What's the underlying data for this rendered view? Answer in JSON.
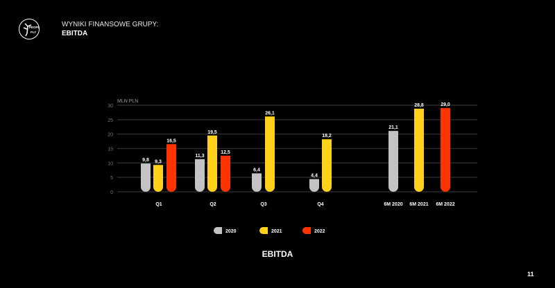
{
  "header": {
    "line1": "WYNIKI FINANSOWE GRUPY:",
    "line2": "EBITDA",
    "logo_text": "PEOPLE CAN FLY"
  },
  "page_number": "11",
  "chart_data": {
    "type": "bar",
    "title": "EBITDA",
    "ylabel": "MLN PLN",
    "xlabel": "",
    "ylim": [
      0,
      30
    ],
    "yticks": [
      0,
      5,
      10,
      15,
      20,
      25,
      30
    ],
    "grid": true,
    "legend_position": "bottom",
    "categories": [
      "Q1",
      "Q2",
      "Q3",
      "Q4",
      "6M 2020",
      "6M 2021",
      "6M 2022"
    ],
    "series": [
      {
        "name": "2020",
        "color": "#c3c3c3",
        "values": [
          9.8,
          11.3,
          6.4,
          4.4,
          21.1,
          null,
          null
        ],
        "labels": [
          "9,8",
          "11,3",
          "6,4",
          "4,4",
          "21,1",
          null,
          null
        ]
      },
      {
        "name": "2021",
        "color": "#ffd11a",
        "values": [
          9.3,
          19.5,
          26.1,
          18.2,
          null,
          28.8,
          null
        ],
        "labels": [
          "9,3",
          "19,5",
          "26,1",
          "18,2",
          null,
          "28,8",
          null
        ]
      },
      {
        "name": "2022",
        "color": "#ff3300",
        "values": [
          16.5,
          12.5,
          null,
          null,
          null,
          null,
          29.0
        ],
        "labels": [
          "16,5",
          "12,5",
          null,
          null,
          null,
          null,
          "29,0"
        ]
      }
    ]
  }
}
